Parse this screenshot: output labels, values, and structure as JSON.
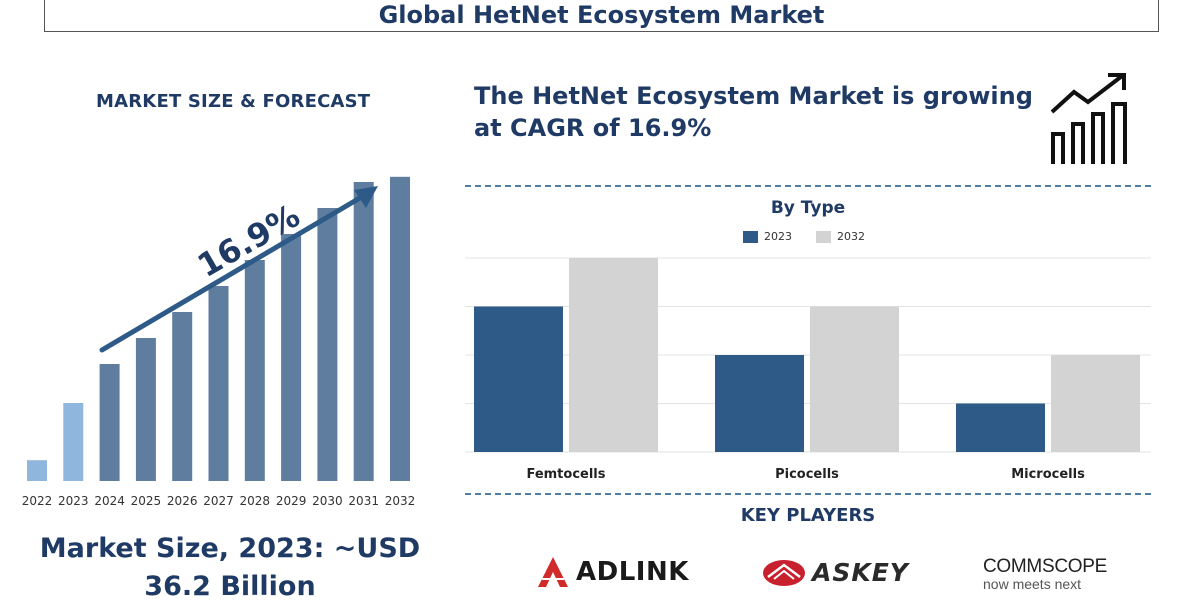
{
  "header": {
    "title": "Global HetNet Ecosystem Market"
  },
  "left_panel": {
    "heading": "MARKET SIZE & FORECAST",
    "growth_label": "16.9%",
    "market_size_line1": "Market Size, 2023: ~USD",
    "market_size_line2": "36.2 Billion"
  },
  "right_panel": {
    "headline_line1": "The HetNet Ecosystem Market is growing",
    "headline_line2": "at CAGR of 16.9%",
    "key_players_title": "KEY PLAYERS",
    "players": [
      "ADLINK",
      "ASKEY",
      "COMMSCOPE",
      "now meets next"
    ]
  },
  "colors": {
    "navy": "#1f3a64",
    "bar_dark": "#5f7e9f",
    "bar_light": "#8fb6dd",
    "series_2023": "#2e5a88",
    "series_2032": "#d3d3d3"
  },
  "chart_data": [
    {
      "type": "bar",
      "title": "MARKET SIZE & FORECAST",
      "categories": [
        "2022",
        "2023",
        "2024",
        "2025",
        "2026",
        "2027",
        "2028",
        "2029",
        "2030",
        "2031",
        "2032"
      ],
      "values": [
        8,
        30,
        45,
        55,
        65,
        75,
        85,
        95,
        105,
        115,
        117
      ],
      "highlight": [
        "2022",
        "2023"
      ],
      "annotation": "16.9%",
      "xlabel": "",
      "ylabel": "",
      "grid": false
    },
    {
      "type": "bar",
      "title": "By Type",
      "categories": [
        "Femtocells",
        "Picocells",
        "Microcells"
      ],
      "series": [
        {
          "name": "2023",
          "values": [
            3,
            2,
            1
          ]
        },
        {
          "name": "2032",
          "values": [
            4,
            3,
            2
          ]
        }
      ],
      "ylim": [
        0,
        4
      ],
      "grid": true,
      "legend": "top-center"
    }
  ]
}
